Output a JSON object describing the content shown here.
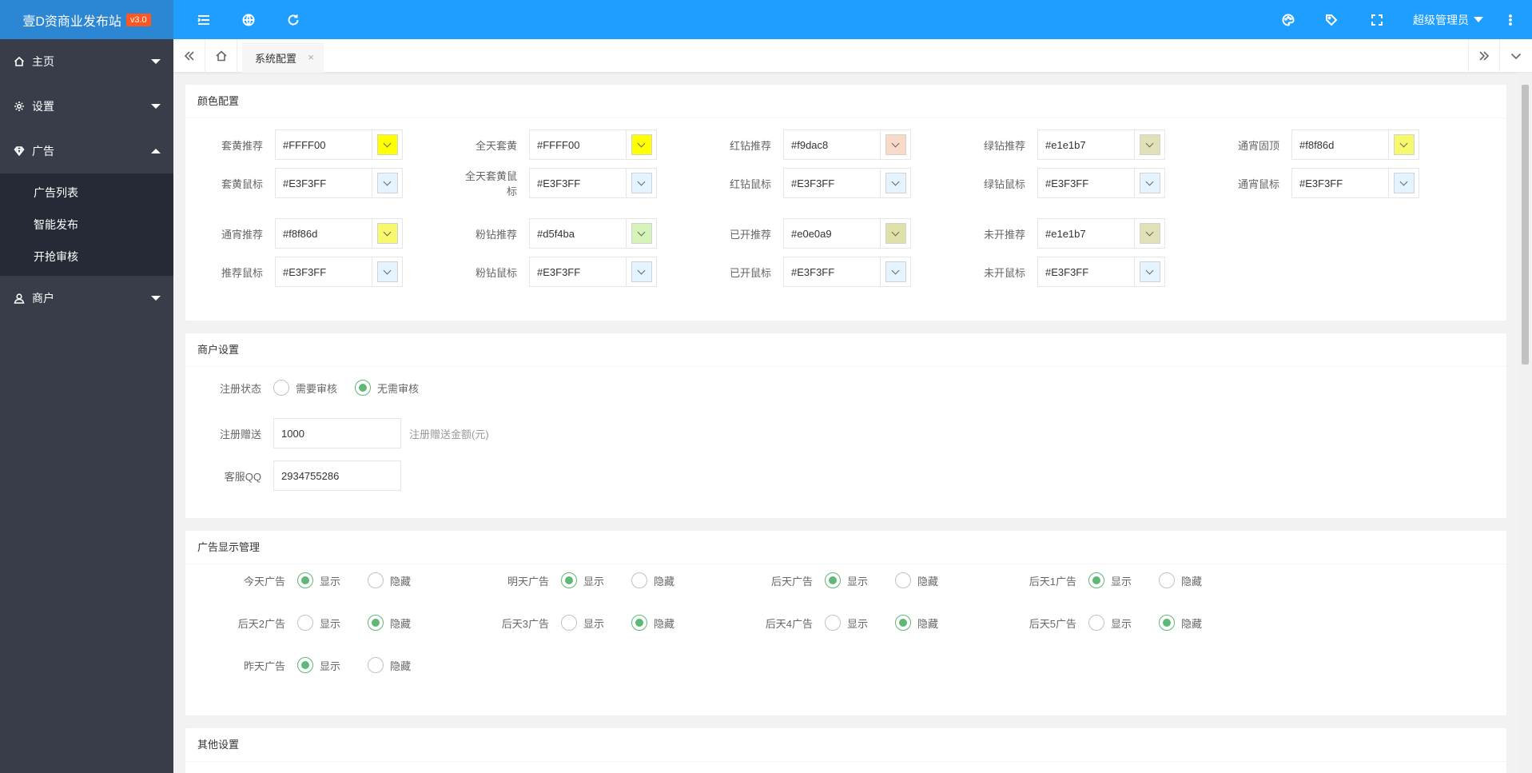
{
  "brand": {
    "title": "壹D资商业发布站",
    "version": "v3.0"
  },
  "topbar": {
    "user": "超级管理员"
  },
  "sidebar": {
    "items": [
      {
        "label": "主页"
      },
      {
        "label": "设置"
      },
      {
        "label": "广告"
      },
      {
        "label": "商户"
      }
    ],
    "ad_sub": [
      "广告列表",
      "智能发布",
      "开抢审核"
    ]
  },
  "tabs": {
    "active": "系统配置",
    "close": "×"
  },
  "color_section": {
    "title": "颜色配置",
    "rows": [
      [
        {
          "label": "套黄推荐",
          "value": "#FFFF00",
          "color": "#FFFF00"
        },
        {
          "label": "全天套黄",
          "value": "#FFFF00",
          "color": "#FFFF00"
        },
        {
          "label": "红钻推荐",
          "value": "#f9dac8",
          "color": "#f9dac8"
        },
        {
          "label": "绿钻推荐",
          "value": "#e1e1b7",
          "color": "#e1e1b7"
        },
        {
          "label": "通宵固顶",
          "value": "#f8f86d",
          "color": "#f8f86d"
        }
      ],
      [
        {
          "label": "套黄鼠标",
          "value": "#E3F3FF",
          "color": "#E3F3FF"
        },
        {
          "label": "全天套黄鼠标",
          "value": "#E3F3FF",
          "color": "#E3F3FF"
        },
        {
          "label": "红钻鼠标",
          "value": "#E3F3FF",
          "color": "#E3F3FF"
        },
        {
          "label": "绿钻鼠标",
          "value": "#E3F3FF",
          "color": "#E3F3FF"
        },
        {
          "label": "通宵鼠标",
          "value": "#E3F3FF",
          "color": "#E3F3FF"
        }
      ],
      [
        {
          "label": "通宵推荐",
          "value": "#f8f86d",
          "color": "#f8f86d"
        },
        {
          "label": "粉钻推荐",
          "value": "#d5f4ba",
          "color": "#d5f4ba"
        },
        {
          "label": "已开推荐",
          "value": "#e0e0a9",
          "color": "#e0e0a9"
        },
        {
          "label": "未开推荐",
          "value": "#e1e1b7",
          "color": "#e1e1b7"
        }
      ],
      [
        {
          "label": "推荐鼠标",
          "value": "#E3F3FF",
          "color": "#E3F3FF"
        },
        {
          "label": "粉钻鼠标",
          "value": "#E3F3FF",
          "color": "#E3F3FF"
        },
        {
          "label": "已开鼠标",
          "value": "#E3F3FF",
          "color": "#E3F3FF"
        },
        {
          "label": "未开鼠标",
          "value": "#E3F3FF",
          "color": "#E3F3FF"
        }
      ]
    ]
  },
  "merchant_section": {
    "title": "商户设置",
    "reg_status_label": "注册状态",
    "reg_options": [
      {
        "label": "需要审核",
        "checked": false
      },
      {
        "label": "无需审核",
        "checked": true
      }
    ],
    "gift_label": "注册赠送",
    "gift_value": "1000",
    "gift_hint": "注册赠送金额(元)",
    "qq_label": "客服QQ",
    "qq_value": "2934755286"
  },
  "ad_display_section": {
    "title": "广告显示管理",
    "show": "显示",
    "hide": "隐藏",
    "items": [
      {
        "label": "今天广告",
        "show": true
      },
      {
        "label": "明天广告",
        "show": true
      },
      {
        "label": "后天广告",
        "show": true
      },
      {
        "label": "后天1广告",
        "show": true
      },
      {
        "label": "后天2广告",
        "show": false
      },
      {
        "label": "后天3广告",
        "show": false
      },
      {
        "label": "后天4广告",
        "show": false
      },
      {
        "label": "后天5广告",
        "show": false
      },
      {
        "label": "昨天广告",
        "show": true
      }
    ]
  },
  "other_section": {
    "title": "其他设置"
  },
  "colors": {
    "topbar": "#1e9fff",
    "sidebar": "#393d49",
    "radio_on": "#5fb878",
    "version_badge": "#ff5722"
  }
}
